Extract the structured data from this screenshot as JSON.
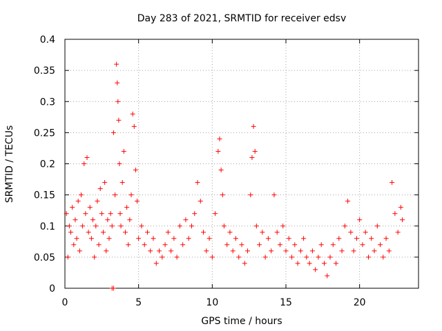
{
  "chart_data": {
    "type": "scatter",
    "title": "Day 283 of 2021, SRMTID for receiver edsv",
    "xlabel": "GPS time / hours",
    "ylabel": "SRMTID / TECUs",
    "xlim": [
      0,
      24
    ],
    "ylim": [
      0,
      0.4
    ],
    "x_ticks": [
      0,
      5,
      10,
      15,
      20
    ],
    "x_tick_labels": [
      "0",
      "5",
      "10",
      "15",
      "20"
    ],
    "y_ticks": [
      0,
      0.05,
      0.1,
      0.15,
      0.2,
      0.25,
      0.3,
      0.35,
      0.4
    ],
    "y_tick_labels": [
      "0",
      "0.05",
      "0.1",
      "0.15",
      "0.2",
      "0.25",
      "0.3",
      "0.35",
      "0.4"
    ],
    "grid": true,
    "marker": "plus",
    "color": "#ff0000",
    "series": [
      {
        "name": "SRMTID",
        "points": [
          [
            0.1,
            0.12
          ],
          [
            0.2,
            0.05
          ],
          [
            0.3,
            0.1
          ],
          [
            0.4,
            0.09
          ],
          [
            0.5,
            0.13
          ],
          [
            0.6,
            0.07
          ],
          [
            0.7,
            0.11
          ],
          [
            0.8,
            0.08
          ],
          [
            0.9,
            0.14
          ],
          [
            1.0,
            0.06
          ],
          [
            1.1,
            0.15
          ],
          [
            1.2,
            0.1
          ],
          [
            1.3,
            0.2
          ],
          [
            1.4,
            0.12
          ],
          [
            1.5,
            0.21
          ],
          [
            1.6,
            0.09
          ],
          [
            1.7,
            0.13
          ],
          [
            1.8,
            0.08
          ],
          [
            1.9,
            0.11
          ],
          [
            2.0,
            0.05
          ],
          [
            2.1,
            0.1
          ],
          [
            2.2,
            0.14
          ],
          [
            2.3,
            0.07
          ],
          [
            2.4,
            0.16
          ],
          [
            2.5,
            0.12
          ],
          [
            2.6,
            0.09
          ],
          [
            2.7,
            0.17
          ],
          [
            2.8,
            0.06
          ],
          [
            2.9,
            0.11
          ],
          [
            3.0,
            0.08
          ],
          [
            3.1,
            0.12
          ],
          [
            3.2,
            0.1
          ],
          [
            3.3,
            0.25
          ],
          [
            3.4,
            0.15
          ],
          [
            3.5,
            0.36
          ],
          [
            3.55,
            0.33
          ],
          [
            3.6,
            0.3
          ],
          [
            3.65,
            0.27
          ],
          [
            3.7,
            0.2
          ],
          [
            3.75,
            0.12
          ],
          [
            3.8,
            0.1
          ],
          [
            3.9,
            0.17
          ],
          [
            4.0,
            0.22
          ],
          [
            4.1,
            0.09
          ],
          [
            4.2,
            0.13
          ],
          [
            4.3,
            0.07
          ],
          [
            4.4,
            0.11
          ],
          [
            4.5,
            0.15
          ],
          [
            4.6,
            0.28
          ],
          [
            4.7,
            0.26
          ],
          [
            4.8,
            0.19
          ],
          [
            4.9,
            0.14
          ],
          [
            5.0,
            0.08
          ],
          [
            5.2,
            0.1
          ],
          [
            5.4,
            0.07
          ],
          [
            5.6,
            0.09
          ],
          [
            5.8,
            0.06
          ],
          [
            6.0,
            0.08
          ],
          [
            6.2,
            0.04
          ],
          [
            6.4,
            0.06
          ],
          [
            6.6,
            0.05
          ],
          [
            6.8,
            0.07
          ],
          [
            7.0,
            0.09
          ],
          [
            7.2,
            0.06
          ],
          [
            7.4,
            0.08
          ],
          [
            7.6,
            0.05
          ],
          [
            7.8,
            0.1
          ],
          [
            8.0,
            0.07
          ],
          [
            8.2,
            0.11
          ],
          [
            8.4,
            0.08
          ],
          [
            8.6,
            0.1
          ],
          [
            8.8,
            0.12
          ],
          [
            9.0,
            0.17
          ],
          [
            9.2,
            0.14
          ],
          [
            9.4,
            0.09
          ],
          [
            9.6,
            0.06
          ],
          [
            9.8,
            0.08
          ],
          [
            10.0,
            0.05
          ],
          [
            10.2,
            0.12
          ],
          [
            10.4,
            0.22
          ],
          [
            10.5,
            0.24
          ],
          [
            10.6,
            0.19
          ],
          [
            10.7,
            0.15
          ],
          [
            10.8,
            0.1
          ],
          [
            11.0,
            0.07
          ],
          [
            11.2,
            0.09
          ],
          [
            11.4,
            0.06
          ],
          [
            11.6,
            0.08
          ],
          [
            11.8,
            0.05
          ],
          [
            12.0,
            0.07
          ],
          [
            12.2,
            0.04
          ],
          [
            12.4,
            0.06
          ],
          [
            12.6,
            0.15
          ],
          [
            12.7,
            0.21
          ],
          [
            12.8,
            0.26
          ],
          [
            12.9,
            0.22
          ],
          [
            13.0,
            0.1
          ],
          [
            13.2,
            0.07
          ],
          [
            13.4,
            0.09
          ],
          [
            13.6,
            0.05
          ],
          [
            13.8,
            0.08
          ],
          [
            14.0,
            0.06
          ],
          [
            14.2,
            0.15
          ],
          [
            14.4,
            0.09
          ],
          [
            14.6,
            0.07
          ],
          [
            14.8,
            0.1
          ],
          [
            15.0,
            0.06
          ],
          [
            15.2,
            0.08
          ],
          [
            15.4,
            0.05
          ],
          [
            15.6,
            0.07
          ],
          [
            15.8,
            0.04
          ],
          [
            16.0,
            0.06
          ],
          [
            16.2,
            0.08
          ],
          [
            16.4,
            0.05
          ],
          [
            16.6,
            0.04
          ],
          [
            16.8,
            0.06
          ],
          [
            17.0,
            0.03
          ],
          [
            17.2,
            0.05
          ],
          [
            17.4,
            0.07
          ],
          [
            17.6,
            0.04
          ],
          [
            17.8,
            0.02
          ],
          [
            18.0,
            0.05
          ],
          [
            18.2,
            0.07
          ],
          [
            18.4,
            0.04
          ],
          [
            18.6,
            0.08
          ],
          [
            18.8,
            0.06
          ],
          [
            19.0,
            0.1
          ],
          [
            19.2,
            0.14
          ],
          [
            19.4,
            0.09
          ],
          [
            19.6,
            0.06
          ],
          [
            19.8,
            0.08
          ],
          [
            20.0,
            0.11
          ],
          [
            20.2,
            0.07
          ],
          [
            20.4,
            0.09
          ],
          [
            20.6,
            0.05
          ],
          [
            20.8,
            0.08
          ],
          [
            21.0,
            0.06
          ],
          [
            21.2,
            0.1
          ],
          [
            21.4,
            0.07
          ],
          [
            21.6,
            0.05
          ],
          [
            21.8,
            0.08
          ],
          [
            22.0,
            0.06
          ],
          [
            22.2,
            0.17
          ],
          [
            22.4,
            0.12
          ],
          [
            22.6,
            0.09
          ],
          [
            22.8,
            0.13
          ],
          [
            22.9,
            0.11
          ],
          [
            3.2,
            0.0
          ],
          [
            3.3,
            0.0
          ]
        ]
      }
    ]
  }
}
